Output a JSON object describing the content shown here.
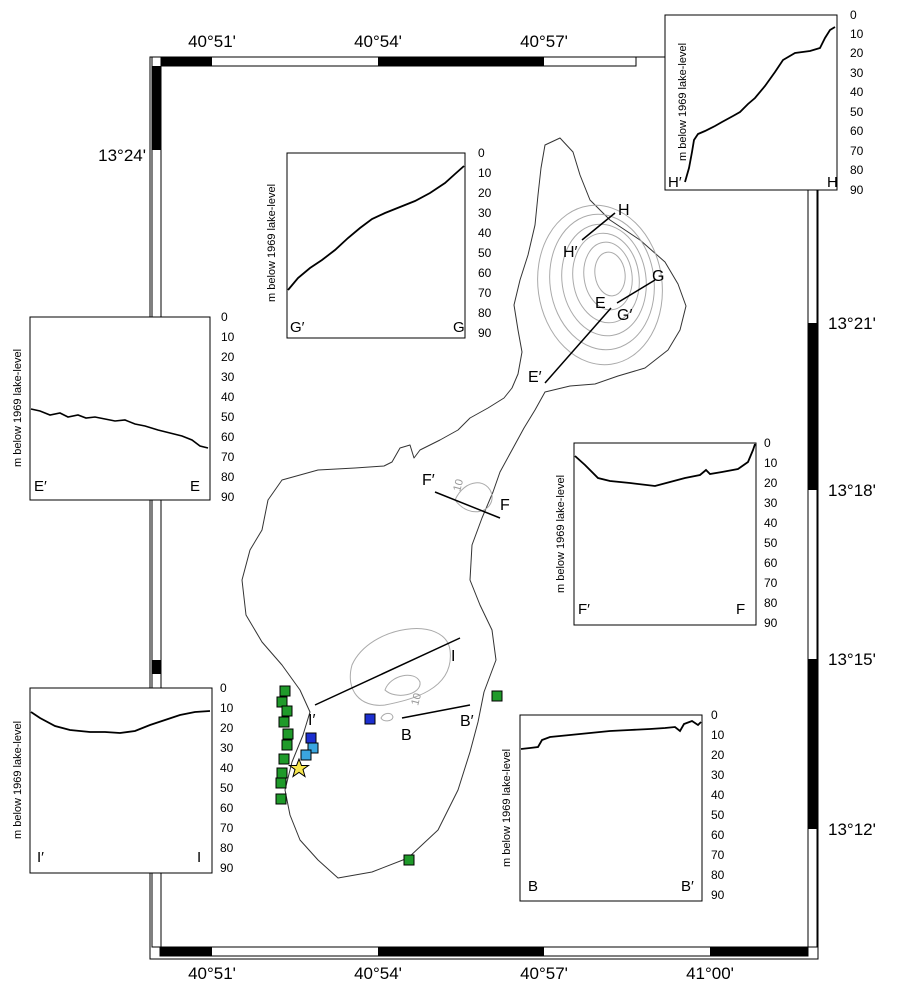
{
  "map": {
    "lon_labels_top": [
      "40°51'",
      "40°54'",
      "40°57'"
    ],
    "lon_labels_bottom": [
      "40°51'",
      "40°54'",
      "40°57'",
      "41°00'"
    ],
    "lat_labels_left": [
      "13°24'"
    ],
    "lat_labels_right": [
      "13°21'",
      "13°18'",
      "13°15'",
      "13°12'"
    ],
    "contour_labels": [
      "10",
      "10"
    ],
    "section_labels": [
      "H",
      "H′",
      "G",
      "G′",
      "E",
      "E′",
      "F",
      "F′",
      "I",
      "I′",
      "B",
      "B′"
    ],
    "marker_colors": {
      "green": "#1f9a2a",
      "light_blue": "#3aa6e0",
      "dark_blue": "#1c2fd0",
      "star": "#f6e54b"
    }
  },
  "profiles": {
    "y_axis_label": "m below 1969 lake-level",
    "y_ticks": [
      "0",
      "10",
      "20",
      "30",
      "40",
      "50",
      "60",
      "70",
      "80",
      "90"
    ],
    "H": {
      "left": "H′",
      "right": "H"
    },
    "G": {
      "left": "G′",
      "right": "G"
    },
    "E": {
      "left": "E′",
      "right": "E"
    },
    "F": {
      "left": "F′",
      "right": "F"
    },
    "I": {
      "left": "I′",
      "right": "I"
    },
    "B": {
      "left": "B",
      "right": "B′"
    }
  }
}
